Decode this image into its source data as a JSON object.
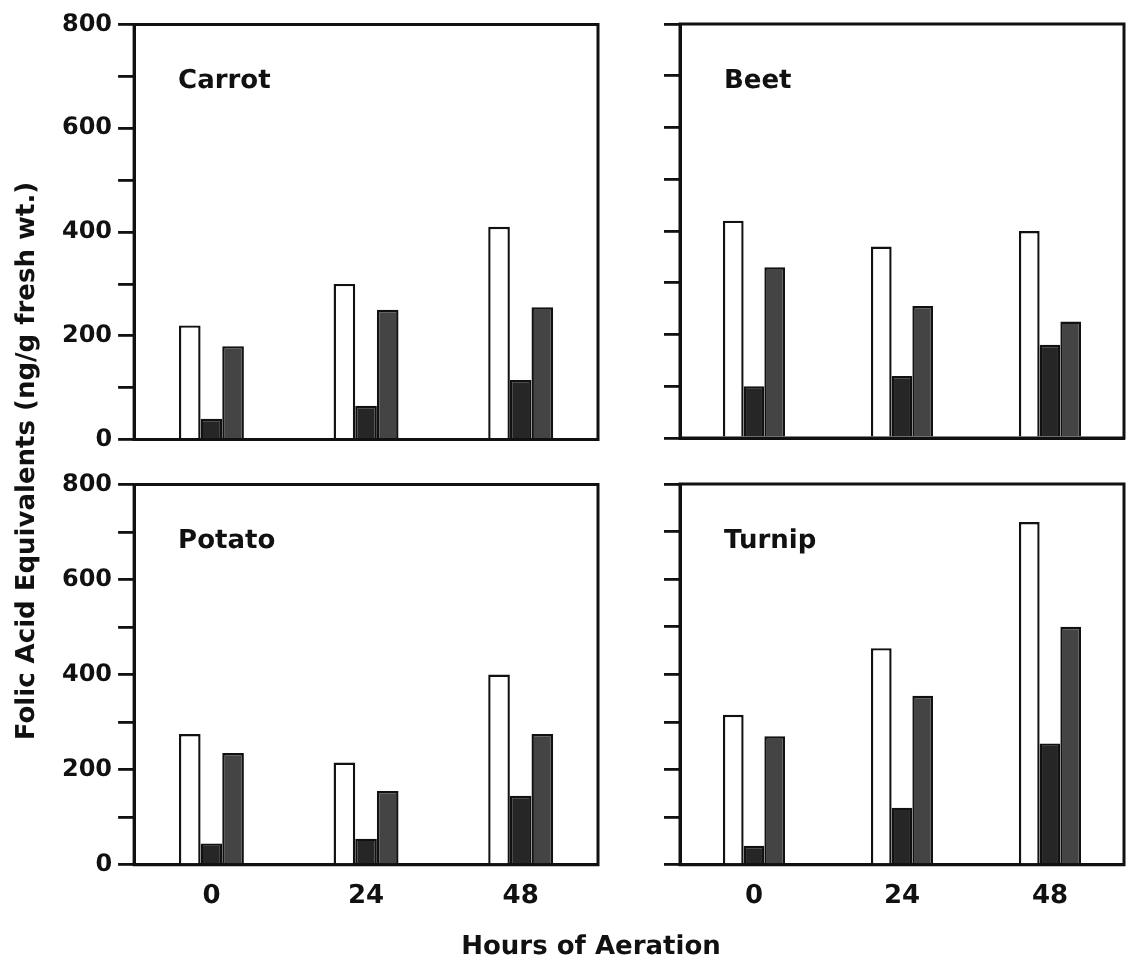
{
  "chart_data": [
    {
      "type": "bar",
      "title": "Carrot",
      "ylabel": "Folic Acid Equivalents  (ng/g fresh wt.)",
      "categories": [
        "0",
        "24",
        "48"
      ],
      "series": [
        {
          "color": "#ffffff",
          "values": [
            220,
            300,
            410
          ]
        },
        {
          "color": "#262626",
          "values": [
            40,
            65,
            115
          ]
        },
        {
          "color": "#444444",
          "values": [
            180,
            250,
            255
          ]
        }
      ],
      "ylim": [
        0,
        800
      ],
      "yticks": [
        0,
        {
          "value": 100,
          "label": null
        },
        200,
        {
          "value": 300,
          "label": null
        },
        400,
        {
          "value": 500,
          "label": null
        },
        600,
        {
          "value": 700,
          "label": null
        },
        800
      ],
      "grid": false,
      "legend": false,
      "tick_labels": "y"
    },
    {
      "type": "bar",
      "title": "Beet",
      "categories": [
        "0",
        "24",
        "48"
      ],
      "series": [
        {
          "color": "#ffffff",
          "values": [
            420,
            370,
            400
          ]
        },
        {
          "color": "#262626",
          "values": [
            100,
            120,
            180
          ]
        },
        {
          "color": "#444444",
          "values": [
            330,
            255,
            225
          ]
        }
      ],
      "ylim": [
        0,
        800
      ],
      "yticks": [
        0,
        {
          "value": 100,
          "label": null
        },
        200,
        {
          "value": 300,
          "label": null
        },
        400,
        {
          "value": 500,
          "label": null
        },
        600,
        {
          "value": 700,
          "label": null
        },
        800
      ],
      "grid": false,
      "legend": false,
      "tick_labels": false
    },
    {
      "type": "bar",
      "title": "Potato",
      "xlabel": "Hours  of  Aeration",
      "categories": [
        "0",
        "24",
        "48"
      ],
      "series": [
        {
          "color": "#ffffff",
          "values": [
            275,
            215,
            400
          ]
        },
        {
          "color": "#262626",
          "values": [
            45,
            55,
            145
          ]
        },
        {
          "color": "#444444",
          "values": [
            235,
            155,
            275
          ]
        }
      ],
      "ylim": [
        0,
        800
      ],
      "yticks": [
        0,
        {
          "value": 100,
          "label": null
        },
        200,
        {
          "value": 300,
          "label": null
        },
        400,
        {
          "value": 500,
          "label": null
        },
        600,
        {
          "value": 700,
          "label": null
        },
        800
      ],
      "grid": false,
      "legend": false
    },
    {
      "type": "bar",
      "title": "Turnip",
      "categories": [
        "0",
        "24",
        "48"
      ],
      "series": [
        {
          "color": "#ffffff",
          "values": [
            315,
            455,
            720
          ]
        },
        {
          "color": "#262626",
          "values": [
            40,
            120,
            255
          ]
        },
        {
          "color": "#444444",
          "values": [
            270,
            355,
            500
          ]
        }
      ],
      "ylim": [
        0,
        800
      ],
      "yticks": [
        0,
        {
          "value": 100,
          "label": null
        },
        200,
        {
          "value": 300,
          "label": null
        },
        400,
        {
          "value": 500,
          "label": null
        },
        600,
        {
          "value": 700,
          "label": null
        },
        800
      ],
      "grid": false,
      "legend": false,
      "tick_labels": "x"
    }
  ]
}
